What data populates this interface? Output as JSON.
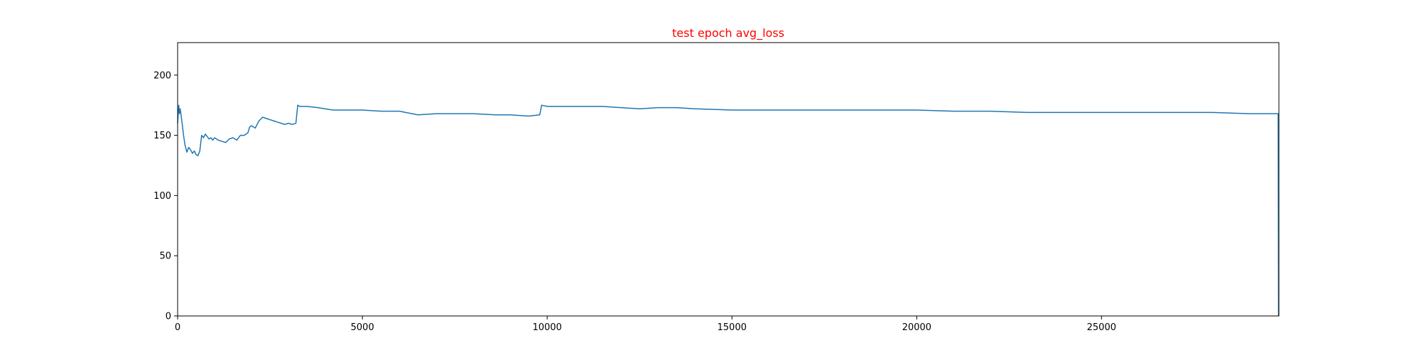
{
  "colors": {
    "title": "#ff0000",
    "series": "#1f77b4",
    "axes": "#000000",
    "background": "#ffffff"
  },
  "chart_data": {
    "type": "line",
    "title": "test epoch avg_loss",
    "xlabel": "",
    "ylabel": "",
    "xlim": [
      0,
      29800
    ],
    "ylim": [
      0,
      227
    ],
    "grid": false,
    "legend": "none",
    "xticks": [
      0,
      5000,
      10000,
      15000,
      20000,
      25000
    ],
    "yticks": [
      0,
      50,
      100,
      150,
      200
    ],
    "series": [
      {
        "x": [
          0,
          30,
          50,
          70,
          100,
          130,
          160,
          200,
          250,
          300,
          350,
          400,
          450,
          500,
          550,
          600,
          650,
          700,
          750,
          800,
          850,
          900,
          950,
          1000,
          1100,
          1200,
          1300,
          1400,
          1500,
          1600,
          1700,
          1800,
          1900,
          1950,
          2000,
          2100,
          2150,
          2200,
          2300,
          2400,
          2500,
          2600,
          2700,
          2800,
          2900,
          3000,
          3100,
          3200,
          3250,
          3300,
          3500,
          3800,
          4200,
          5000,
          5500,
          6000,
          6500,
          7000,
          7500,
          8000,
          8600,
          9000,
          9500,
          9800,
          9850,
          10000,
          10500,
          11000,
          11500,
          12000,
          12500,
          13000,
          13500,
          14000,
          15000,
          16000,
          17000,
          18000,
          19000,
          20000,
          21000,
          22000,
          23000,
          24000,
          25000,
          26000,
          27000,
          28000,
          29000,
          29780,
          29790
        ],
        "values": [
          160,
          175,
          168,
          172,
          165,
          158,
          150,
          142,
          136,
          140,
          138,
          135,
          137,
          134,
          133,
          137,
          150,
          148,
          151,
          149,
          147,
          148,
          146,
          148,
          146,
          145,
          144,
          147,
          148,
          146,
          150,
          150,
          152,
          157,
          158,
          156,
          159,
          162,
          165,
          164,
          163,
          162,
          161,
          160,
          159,
          160,
          159,
          160,
          175,
          174,
          174,
          173,
          171,
          171,
          170,
          170,
          167,
          168,
          168,
          168,
          167,
          167,
          166,
          167,
          175,
          174,
          174,
          174,
          174,
          173,
          172,
          173,
          173,
          172,
          171,
          171,
          171,
          171,
          171,
          171,
          170,
          170,
          169,
          169,
          169,
          169,
          169,
          169,
          168,
          168,
          0
        ]
      }
    ]
  }
}
